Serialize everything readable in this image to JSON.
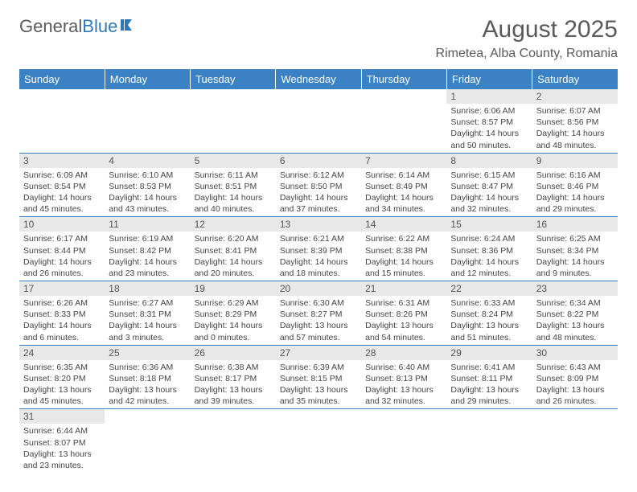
{
  "logo": {
    "text1": "General",
    "text2": "Blue"
  },
  "title": "August 2025",
  "location": "Rimetea, Alba County, Romania",
  "colors": {
    "header_bg": "#3b82c4",
    "header_text": "#ffffff",
    "daynum_bg": "#e8e8e8",
    "border": "#3b82c4",
    "body_text": "#444444",
    "title_text": "#5a5a5a"
  },
  "weekdays": [
    "Sunday",
    "Monday",
    "Tuesday",
    "Wednesday",
    "Thursday",
    "Friday",
    "Saturday"
  ],
  "layout": {
    "start_day_index": 5,
    "days_in_month": 31,
    "rows": 6,
    "cols": 7
  },
  "days": {
    "1": {
      "sunrise": "6:06 AM",
      "sunset": "8:57 PM",
      "daylight": "14 hours and 50 minutes."
    },
    "2": {
      "sunrise": "6:07 AM",
      "sunset": "8:56 PM",
      "daylight": "14 hours and 48 minutes."
    },
    "3": {
      "sunrise": "6:09 AM",
      "sunset": "8:54 PM",
      "daylight": "14 hours and 45 minutes."
    },
    "4": {
      "sunrise": "6:10 AM",
      "sunset": "8:53 PM",
      "daylight": "14 hours and 43 minutes."
    },
    "5": {
      "sunrise": "6:11 AM",
      "sunset": "8:51 PM",
      "daylight": "14 hours and 40 minutes."
    },
    "6": {
      "sunrise": "6:12 AM",
      "sunset": "8:50 PM",
      "daylight": "14 hours and 37 minutes."
    },
    "7": {
      "sunrise": "6:14 AM",
      "sunset": "8:49 PM",
      "daylight": "14 hours and 34 minutes."
    },
    "8": {
      "sunrise": "6:15 AM",
      "sunset": "8:47 PM",
      "daylight": "14 hours and 32 minutes."
    },
    "9": {
      "sunrise": "6:16 AM",
      "sunset": "8:46 PM",
      "daylight": "14 hours and 29 minutes."
    },
    "10": {
      "sunrise": "6:17 AM",
      "sunset": "8:44 PM",
      "daylight": "14 hours and 26 minutes."
    },
    "11": {
      "sunrise": "6:19 AM",
      "sunset": "8:42 PM",
      "daylight": "14 hours and 23 minutes."
    },
    "12": {
      "sunrise": "6:20 AM",
      "sunset": "8:41 PM",
      "daylight": "14 hours and 20 minutes."
    },
    "13": {
      "sunrise": "6:21 AM",
      "sunset": "8:39 PM",
      "daylight": "14 hours and 18 minutes."
    },
    "14": {
      "sunrise": "6:22 AM",
      "sunset": "8:38 PM",
      "daylight": "14 hours and 15 minutes."
    },
    "15": {
      "sunrise": "6:24 AM",
      "sunset": "8:36 PM",
      "daylight": "14 hours and 12 minutes."
    },
    "16": {
      "sunrise": "6:25 AM",
      "sunset": "8:34 PM",
      "daylight": "14 hours and 9 minutes."
    },
    "17": {
      "sunrise": "6:26 AM",
      "sunset": "8:33 PM",
      "daylight": "14 hours and 6 minutes."
    },
    "18": {
      "sunrise": "6:27 AM",
      "sunset": "8:31 PM",
      "daylight": "14 hours and 3 minutes."
    },
    "19": {
      "sunrise": "6:29 AM",
      "sunset": "8:29 PM",
      "daylight": "14 hours and 0 minutes."
    },
    "20": {
      "sunrise": "6:30 AM",
      "sunset": "8:27 PM",
      "daylight": "13 hours and 57 minutes."
    },
    "21": {
      "sunrise": "6:31 AM",
      "sunset": "8:26 PM",
      "daylight": "13 hours and 54 minutes."
    },
    "22": {
      "sunrise": "6:33 AM",
      "sunset": "8:24 PM",
      "daylight": "13 hours and 51 minutes."
    },
    "23": {
      "sunrise": "6:34 AM",
      "sunset": "8:22 PM",
      "daylight": "13 hours and 48 minutes."
    },
    "24": {
      "sunrise": "6:35 AM",
      "sunset": "8:20 PM",
      "daylight": "13 hours and 45 minutes."
    },
    "25": {
      "sunrise": "6:36 AM",
      "sunset": "8:18 PM",
      "daylight": "13 hours and 42 minutes."
    },
    "26": {
      "sunrise": "6:38 AM",
      "sunset": "8:17 PM",
      "daylight": "13 hours and 39 minutes."
    },
    "27": {
      "sunrise": "6:39 AM",
      "sunset": "8:15 PM",
      "daylight": "13 hours and 35 minutes."
    },
    "28": {
      "sunrise": "6:40 AM",
      "sunset": "8:13 PM",
      "daylight": "13 hours and 32 minutes."
    },
    "29": {
      "sunrise": "6:41 AM",
      "sunset": "8:11 PM",
      "daylight": "13 hours and 29 minutes."
    },
    "30": {
      "sunrise": "6:43 AM",
      "sunset": "8:09 PM",
      "daylight": "13 hours and 26 minutes."
    },
    "31": {
      "sunrise": "6:44 AM",
      "sunset": "8:07 PM",
      "daylight": "13 hours and 23 minutes."
    }
  },
  "labels": {
    "sunrise": "Sunrise:",
    "sunset": "Sunset:",
    "daylight": "Daylight:"
  }
}
